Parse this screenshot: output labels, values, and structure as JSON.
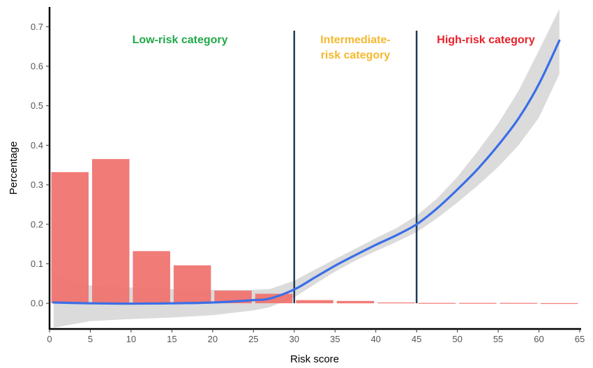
{
  "chart_data": {
    "type": "bar",
    "title": "",
    "xlabel": "Risk score",
    "ylabel": "Percentage",
    "xlim": [
      0,
      65
    ],
    "ylim": [
      -0.065,
      0.75
    ],
    "xticks": [
      0,
      5,
      10,
      15,
      20,
      25,
      30,
      35,
      40,
      45,
      50,
      55,
      60,
      65
    ],
    "yticks": [
      0.0,
      0.1,
      0.2,
      0.3,
      0.4,
      0.5,
      0.6,
      0.7
    ],
    "xtick_labels": [
      "0",
      "5",
      "10",
      "15",
      "20",
      "25",
      "30",
      "35",
      "40",
      "45",
      "50",
      "55",
      "60",
      "65"
    ],
    "ytick_labels": [
      "0.0",
      "0.1",
      "0.2",
      "0.3",
      "0.4",
      "0.5",
      "0.6",
      "0.7"
    ],
    "grid": false,
    "bars": {
      "color": "#f07470",
      "bins": [
        {
          "x0": 0,
          "x1": 5,
          "value": 0.332
        },
        {
          "x0": 5,
          "x1": 10,
          "value": 0.365
        },
        {
          "x0": 10,
          "x1": 15,
          "value": 0.132
        },
        {
          "x0": 15,
          "x1": 20,
          "value": 0.096
        },
        {
          "x0": 20,
          "x1": 25,
          "value": 0.032
        },
        {
          "x0": 25,
          "x1": 30,
          "value": 0.024
        },
        {
          "x0": 30,
          "x1": 35,
          "value": 0.008
        },
        {
          "x0": 35,
          "x1": 40,
          "value": 0.006
        },
        {
          "x0": 40,
          "x1": 45,
          "value": 0.002
        },
        {
          "x0": 45,
          "x1": 50,
          "value": 0.001
        },
        {
          "x0": 50,
          "x1": 55,
          "value": 0.001
        },
        {
          "x0": 55,
          "x1": 60,
          "value": 0.001
        },
        {
          "x0": 60,
          "x1": 65,
          "value": 0.0005
        }
      ]
    },
    "smooth_line": {
      "color": "#3a6ee8",
      "x": [
        0.5,
        5,
        10,
        15,
        20,
        25,
        27,
        30,
        32.5,
        35,
        37.5,
        40,
        42.5,
        45,
        47.5,
        50,
        52.5,
        55,
        57.5,
        60,
        62.5
      ],
      "y": [
        0.002,
        0.0,
        -0.001,
        0.0,
        0.002,
        0.008,
        0.012,
        0.035,
        0.065,
        0.095,
        0.122,
        0.148,
        0.172,
        0.2,
        0.24,
        0.288,
        0.34,
        0.4,
        0.468,
        0.555,
        0.665
      ]
    },
    "confidence_band": {
      "color": "#d9d9d9",
      "x": [
        0.5,
        5,
        10,
        15,
        20,
        25,
        27,
        30,
        32.5,
        35,
        37.5,
        40,
        42.5,
        45,
        47.5,
        50,
        52.5,
        55,
        57.5,
        60,
        62.5
      ],
      "lower": [
        -0.062,
        -0.045,
        -0.04,
        -0.036,
        -0.03,
        -0.018,
        -0.01,
        0.015,
        0.048,
        0.08,
        0.108,
        0.132,
        0.155,
        0.18,
        0.215,
        0.255,
        0.298,
        0.345,
        0.4,
        0.47,
        0.58
      ],
      "upper": [
        0.07,
        0.045,
        0.04,
        0.036,
        0.034,
        0.034,
        0.036,
        0.057,
        0.085,
        0.112,
        0.138,
        0.165,
        0.19,
        0.222,
        0.265,
        0.32,
        0.385,
        0.455,
        0.538,
        0.64,
        0.745
      ]
    },
    "thresholds": {
      "color": "#1f3b57",
      "x": [
        30,
        45
      ],
      "y_top": 0.69
    },
    "category_labels": [
      {
        "text": "Low-risk category",
        "lines": [
          "Low-risk category"
        ],
        "x_center": 16,
        "color": "#22a84a"
      },
      {
        "text": "Intermediate-risk category",
        "lines": [
          "Intermediate-",
          "risk category"
        ],
        "x_center": 37.5,
        "color": "#f5b82e"
      },
      {
        "text": "High-risk category",
        "lines": [
          "High-risk category"
        ],
        "x_center": 53.5,
        "color": "#e8202a"
      }
    ]
  }
}
